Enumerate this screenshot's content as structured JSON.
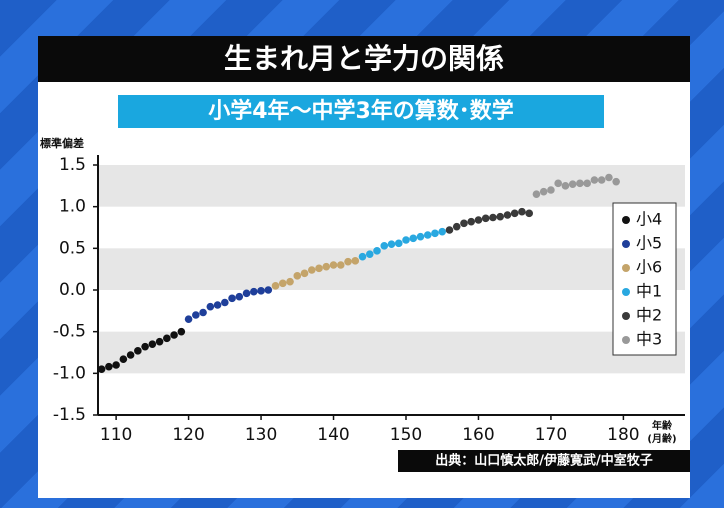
{
  "chart_data": {
    "type": "scatter",
    "title": "生まれ月と学力の関係",
    "subtitle": "小学4年～中学3年の算数･数学",
    "y_label": "標準偏差",
    "x_label_lines": [
      "年齢",
      "(月齢)"
    ],
    "source": "出典：山口慎太郎/伊藤寛武/中室牧子",
    "xlim": [
      107.5,
      188.5
    ],
    "ylim": [
      -1.5,
      1.5
    ],
    "xticks": [
      110,
      120,
      130,
      140,
      150,
      160,
      170,
      180
    ],
    "yticks": [
      1.5,
      {
        "value": 1.0,
        "label": "1.0"
      },
      0.5,
      {
        "value": 0.0,
        "label": "0.0"
      },
      -0.5,
      {
        "value": -1.0,
        "label": "-1.0"
      },
      -1.5
    ],
    "grid_bands": true,
    "series": [
      {
        "name": "小4",
        "color": "#111111",
        "x": [
          108,
          109,
          110,
          111,
          112,
          113,
          114,
          115,
          116,
          117,
          118,
          119
        ],
        "values": [
          -0.95,
          -0.92,
          -0.9,
          -0.83,
          -0.78,
          -0.73,
          -0.68,
          -0.65,
          -0.62,
          -0.58,
          -0.54,
          -0.5
        ]
      },
      {
        "name": "小5",
        "color": "#1f3f9a",
        "x": [
          120,
          121,
          122,
          123,
          124,
          125,
          126,
          127,
          128,
          129,
          130,
          131
        ],
        "values": [
          -0.35,
          -0.3,
          -0.27,
          -0.2,
          -0.18,
          -0.15,
          -0.1,
          -0.08,
          -0.04,
          -0.02,
          -0.01,
          0.0
        ]
      },
      {
        "name": "小6",
        "color": "#c4a46a",
        "x": [
          132,
          133,
          134,
          135,
          136,
          137,
          138,
          139,
          140,
          141,
          142,
          143
        ],
        "values": [
          0.05,
          0.08,
          0.1,
          0.17,
          0.2,
          0.24,
          0.26,
          0.28,
          0.3,
          0.3,
          0.34,
          0.35
        ]
      },
      {
        "name": "中1",
        "color": "#29a8e0",
        "x": [
          144,
          145,
          146,
          147,
          148,
          149,
          150,
          151,
          152,
          153,
          154,
          155
        ],
        "values": [
          0.4,
          0.43,
          0.47,
          0.53,
          0.55,
          0.56,
          0.6,
          0.62,
          0.64,
          0.66,
          0.68,
          0.7
        ]
      },
      {
        "name": "中2",
        "color": "#3a3a3a",
        "x": [
          156,
          157,
          158,
          159,
          160,
          161,
          162,
          163,
          164,
          165,
          166,
          167
        ],
        "values": [
          0.72,
          0.76,
          0.8,
          0.82,
          0.84,
          0.86,
          0.87,
          0.88,
          0.9,
          0.92,
          0.94,
          0.92
        ]
      },
      {
        "name": "中3",
        "color": "#999999",
        "x": [
          168,
          169,
          170,
          171,
          172,
          173,
          174,
          175,
          176,
          177,
          178,
          179
        ],
        "values": [
          1.15,
          1.18,
          1.2,
          1.28,
          1.25,
          1.27,
          1.28,
          1.28,
          1.32,
          1.32,
          1.35,
          1.3
        ]
      }
    ]
  }
}
